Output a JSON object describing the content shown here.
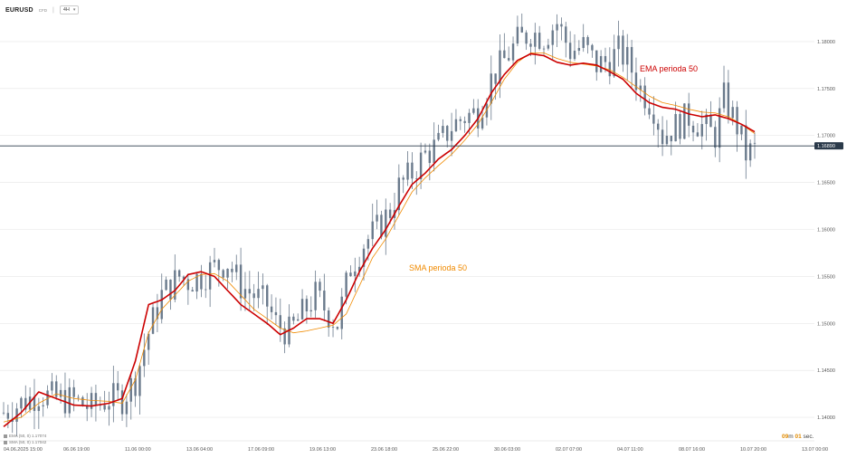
{
  "header": {
    "symbol": "EURUSD",
    "symbol_sub": "CFD",
    "timeframe": "4H"
  },
  "legend": [
    {
      "text": "EMA (50, 0) 1.17074"
    },
    {
      "text": "SMA (50, 0) 1.17042"
    }
  ],
  "timer": {
    "minutes": "09",
    "m": "m",
    "seconds": "01",
    "s": "sec."
  },
  "colors": {
    "candles": "#6a7a8c",
    "ema": "#cc0000",
    "sma": "#f08a00",
    "price_line": "#2b3a4a",
    "grid": "#e6e6e6",
    "price_badge": "#2b3a4a"
  },
  "chart_data": {
    "type": "line",
    "title": "",
    "current_price": "1.16890",
    "current_price_value": 1.1689,
    "ylim": [
      1.1375,
      1.1825
    ],
    "x_ticks": [
      "04.06.2025 15:00",
      "06.06 19:00",
      "11.06 00:00",
      "13.06 04:00",
      "17.06 09:00",
      "19.06 13:00",
      "23.06 18:00",
      "25.06 22:00",
      "30.06 03:00",
      "02.07 07:00",
      "04.07 11:00",
      "08.07 16:00",
      "10.07 20:00",
      "13.07 00:00"
    ],
    "y_ticks": [
      "1.18000",
      "1.17500",
      "1.17000",
      "1.16500",
      "1.16000",
      "1.15500",
      "1.15000",
      "1.14500",
      "1.14000"
    ],
    "y_tick_values": [
      1.18,
      1.175,
      1.17,
      1.165,
      1.16,
      1.155,
      1.15,
      1.145,
      1.14
    ],
    "annotations": [
      {
        "text": "EMA perioda 50",
        "series": "ema"
      },
      {
        "text": "SMA perioda 50",
        "series": "sma"
      }
    ],
    "anchors": [
      [
        0,
        1.1405
      ],
      [
        4,
        1.1415
      ],
      [
        8,
        1.1425
      ],
      [
        12,
        1.142
      ],
      [
        16,
        1.1418
      ],
      [
        20,
        1.141
      ],
      [
        24,
        1.142
      ],
      [
        27,
        1.142
      ],
      [
        30,
        1.144
      ],
      [
        33,
        1.149
      ],
      [
        36,
        1.153
      ],
      [
        38,
        1.154
      ],
      [
        40,
        1.155
      ],
      [
        42,
        1.1545
      ],
      [
        45,
        1.155
      ],
      [
        48,
        1.156
      ],
      [
        51,
        1.1565
      ],
      [
        54,
        1.154
      ],
      [
        57,
        1.153
      ],
      [
        60,
        1.152
      ],
      [
        62,
        1.15
      ],
      [
        65,
        1.149
      ],
      [
        68,
        1.151
      ],
      [
        71,
        1.153
      ],
      [
        74,
        1.151
      ],
      [
        76,
        1.15
      ],
      [
        79,
        1.156
      ],
      [
        82,
        1.1585
      ],
      [
        85,
        1.16
      ],
      [
        88,
        1.162
      ],
      [
        90,
        1.1645
      ],
      [
        93,
        1.166
      ],
      [
        96,
        1.168
      ],
      [
        99,
        1.169
      ],
      [
        102,
        1.171
      ],
      [
        105,
        1.172
      ],
      [
        108,
        1.1725
      ],
      [
        111,
        1.176
      ],
      [
        114,
        1.178
      ],
      [
        117,
        1.18
      ],
      [
        120,
        1.181
      ],
      [
        123,
        1.1805
      ],
      [
        126,
        1.182
      ],
      [
        129,
        1.179
      ],
      [
        132,
        1.1795
      ],
      [
        135,
        1.1775
      ],
      [
        138,
        1.178
      ],
      [
        140,
        1.179
      ],
      [
        142,
        1.178
      ],
      [
        145,
        1.175
      ],
      [
        148,
        1.173
      ],
      [
        150,
        1.17
      ],
      [
        153,
        1.171
      ],
      [
        156,
        1.172
      ],
      [
        159,
        1.171
      ],
      [
        162,
        1.17
      ],
      [
        164,
        1.174
      ],
      [
        167,
        1.171
      ],
      [
        169,
        1.168
      ],
      [
        171,
        1.1685
      ]
    ],
    "ema_anchors": [
      [
        0,
        1.139
      ],
      [
        4,
        1.1405
      ],
      [
        8,
        1.1427
      ],
      [
        12,
        1.142
      ],
      [
        16,
        1.1413
      ],
      [
        20,
        1.1412
      ],
      [
        24,
        1.1415
      ],
      [
        27,
        1.142
      ],
      [
        30,
        1.146
      ],
      [
        33,
        1.152
      ],
      [
        36,
        1.1525
      ],
      [
        39,
        1.1535
      ],
      [
        42,
        1.1552
      ],
      [
        45,
        1.1555
      ],
      [
        48,
        1.155
      ],
      [
        51,
        1.1535
      ],
      [
        54,
        1.152
      ],
      [
        57,
        1.151
      ],
      [
        60,
        1.15
      ],
      [
        63,
        1.1488
      ],
      [
        66,
        1.1495
      ],
      [
        69,
        1.1505
      ],
      [
        72,
        1.1505
      ],
      [
        75,
        1.15
      ],
      [
        78,
        1.1525
      ],
      [
        81,
        1.1555
      ],
      [
        84,
        1.158
      ],
      [
        87,
        1.16
      ],
      [
        90,
        1.1625
      ],
      [
        93,
        1.1648
      ],
      [
        96,
        1.166
      ],
      [
        99,
        1.1675
      ],
      [
        102,
        1.1685
      ],
      [
        105,
        1.17
      ],
      [
        108,
        1.1718
      ],
      [
        111,
        1.1745
      ],
      [
        114,
        1.1765
      ],
      [
        117,
        1.178
      ],
      [
        120,
        1.1787
      ],
      [
        123,
        1.1785
      ],
      [
        126,
        1.1778
      ],
      [
        129,
        1.1775
      ],
      [
        132,
        1.1777
      ],
      [
        135,
        1.1775
      ],
      [
        138,
        1.1768
      ],
      [
        141,
        1.176
      ],
      [
        144,
        1.1745
      ],
      [
        147,
        1.1735
      ],
      [
        150,
        1.173
      ],
      [
        153,
        1.1728
      ],
      [
        156,
        1.1723
      ],
      [
        159,
        1.172
      ],
      [
        162,
        1.1722
      ],
      [
        165,
        1.1718
      ],
      [
        168,
        1.1712
      ],
      [
        171,
        1.1704
      ]
    ],
    "sma_anchors": [
      [
        0,
        1.1395
      ],
      [
        4,
        1.14
      ],
      [
        8,
        1.1415
      ],
      [
        12,
        1.1425
      ],
      [
        16,
        1.142
      ],
      [
        20,
        1.1418
      ],
      [
        24,
        1.1417
      ],
      [
        27,
        1.1415
      ],
      [
        30,
        1.144
      ],
      [
        33,
        1.149
      ],
      [
        36,
        1.1515
      ],
      [
        39,
        1.153
      ],
      [
        42,
        1.1545
      ],
      [
        45,
        1.1552
      ],
      [
        48,
        1.1553
      ],
      [
        51,
        1.1545
      ],
      [
        54,
        1.153
      ],
      [
        57,
        1.1515
      ],
      [
        60,
        1.1505
      ],
      [
        63,
        1.1495
      ],
      [
        66,
        1.149
      ],
      [
        69,
        1.1492
      ],
      [
        72,
        1.1495
      ],
      [
        75,
        1.1498
      ],
      [
        78,
        1.151
      ],
      [
        81,
        1.154
      ],
      [
        84,
        1.157
      ],
      [
        87,
        1.159
      ],
      [
        90,
        1.1615
      ],
      [
        93,
        1.164
      ],
      [
        96,
        1.1655
      ],
      [
        99,
        1.1668
      ],
      [
        102,
        1.168
      ],
      [
        105,
        1.1695
      ],
      [
        108,
        1.1712
      ],
      [
        111,
        1.1735
      ],
      [
        114,
        1.176
      ],
      [
        117,
        1.1778
      ],
      [
        120,
        1.1788
      ],
      [
        123,
        1.1788
      ],
      [
        126,
        1.1782
      ],
      [
        129,
        1.1778
      ],
      [
        132,
        1.1776
      ],
      [
        135,
        1.1774
      ],
      [
        138,
        1.177
      ],
      [
        141,
        1.1762
      ],
      [
        144,
        1.1752
      ],
      [
        147,
        1.1742
      ],
      [
        150,
        1.1735
      ],
      [
        153,
        1.1732
      ],
      [
        156,
        1.1728
      ],
      [
        159,
        1.1725
      ],
      [
        162,
        1.1724
      ],
      [
        165,
        1.172
      ],
      [
        168,
        1.1712
      ],
      [
        171,
        1.1702
      ]
    ]
  }
}
